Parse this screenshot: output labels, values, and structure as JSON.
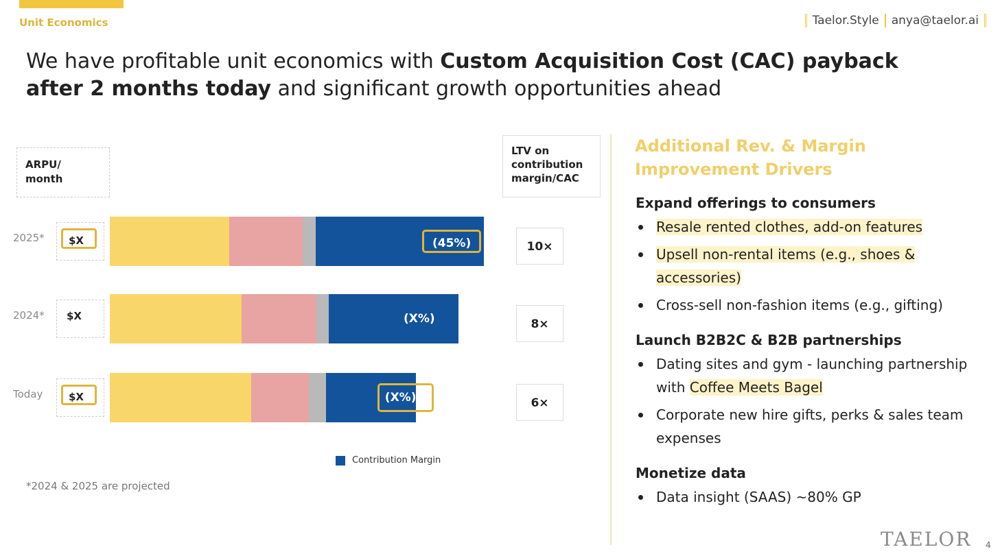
{
  "header": {
    "section": "Unit Economics",
    "brand": "Taelor.Style",
    "email": "anya@taelor.ai"
  },
  "title": [
    {
      "text": "We have profitable unit economics with ",
      "bold": false
    },
    {
      "text": "Custom Acquisition Cost (CAC) payback after 2 months today",
      "bold": true
    },
    {
      "text": " and significant growth opportunities ahead",
      "bold": false
    }
  ],
  "chart_data": {
    "type": "stacked_bar_horizontal",
    "categories": [
      "2025*",
      "2024*",
      "Today"
    ],
    "arpu_header": "ARPU/ month",
    "arpu": [
      "$X",
      "$X",
      "$X"
    ],
    "arpu_outlined": [
      true,
      false,
      true
    ],
    "ltv_header": "LTV on contribution margin/CAC",
    "ltv": [
      "10×",
      "8×",
      "6×"
    ],
    "xlim": [
      0,
      100
    ],
    "series": [
      {
        "color": "#f8d66a",
        "values": [
          32,
          35.2,
          37.8
        ]
      },
      {
        "color": "#e8a3a3",
        "values": [
          19.5,
          20,
          15.4
        ]
      },
      {
        "color": "#b9b9b9",
        "values": [
          3.5,
          3.3,
          4.6
        ]
      },
      {
        "name": "Contribution Margin",
        "color": "#13539b",
        "values": [
          45,
          34.7,
          24
        ],
        "value_labels": [
          "(45%)",
          "(X%)",
          "(X%)"
        ],
        "label_outlined": [
          true,
          false,
          true
        ]
      }
    ],
    "footnote": "*2024 & 2025 are projected"
  },
  "drivers": {
    "heading": "Additional Rev. & Margin Improvement Drivers",
    "sections": [
      {
        "title": "Expand offerings to consumers",
        "items": [
          [
            {
              "text": "Resale rented clothes, add-on features",
              "highlight": true
            }
          ],
          [
            {
              "text": "Upsell non-rental items (e.g., shoes & accessories)",
              "highlight": true
            }
          ],
          [
            {
              "text": "Cross-sell non-fashion items (e.g., gifting)",
              "highlight": false
            }
          ]
        ]
      },
      {
        "title": "Launch B2B2C & B2B partnerships",
        "items": [
          [
            {
              "text": "Dating sites and gym - launching partnership with ",
              "highlight": false
            },
            {
              "text": "Coffee Meets Bagel",
              "highlight": true
            }
          ],
          [
            {
              "text": "Corporate new hire gifts, perks & sales team expenses",
              "highlight": false
            }
          ]
        ]
      },
      {
        "title": "Monetize data",
        "items": [
          [
            {
              "text": "Data insight (SAAS) ~80% GP",
              "highlight": false
            }
          ]
        ]
      }
    ]
  },
  "footer": {
    "logo": "TAELOR",
    "page": "4"
  }
}
